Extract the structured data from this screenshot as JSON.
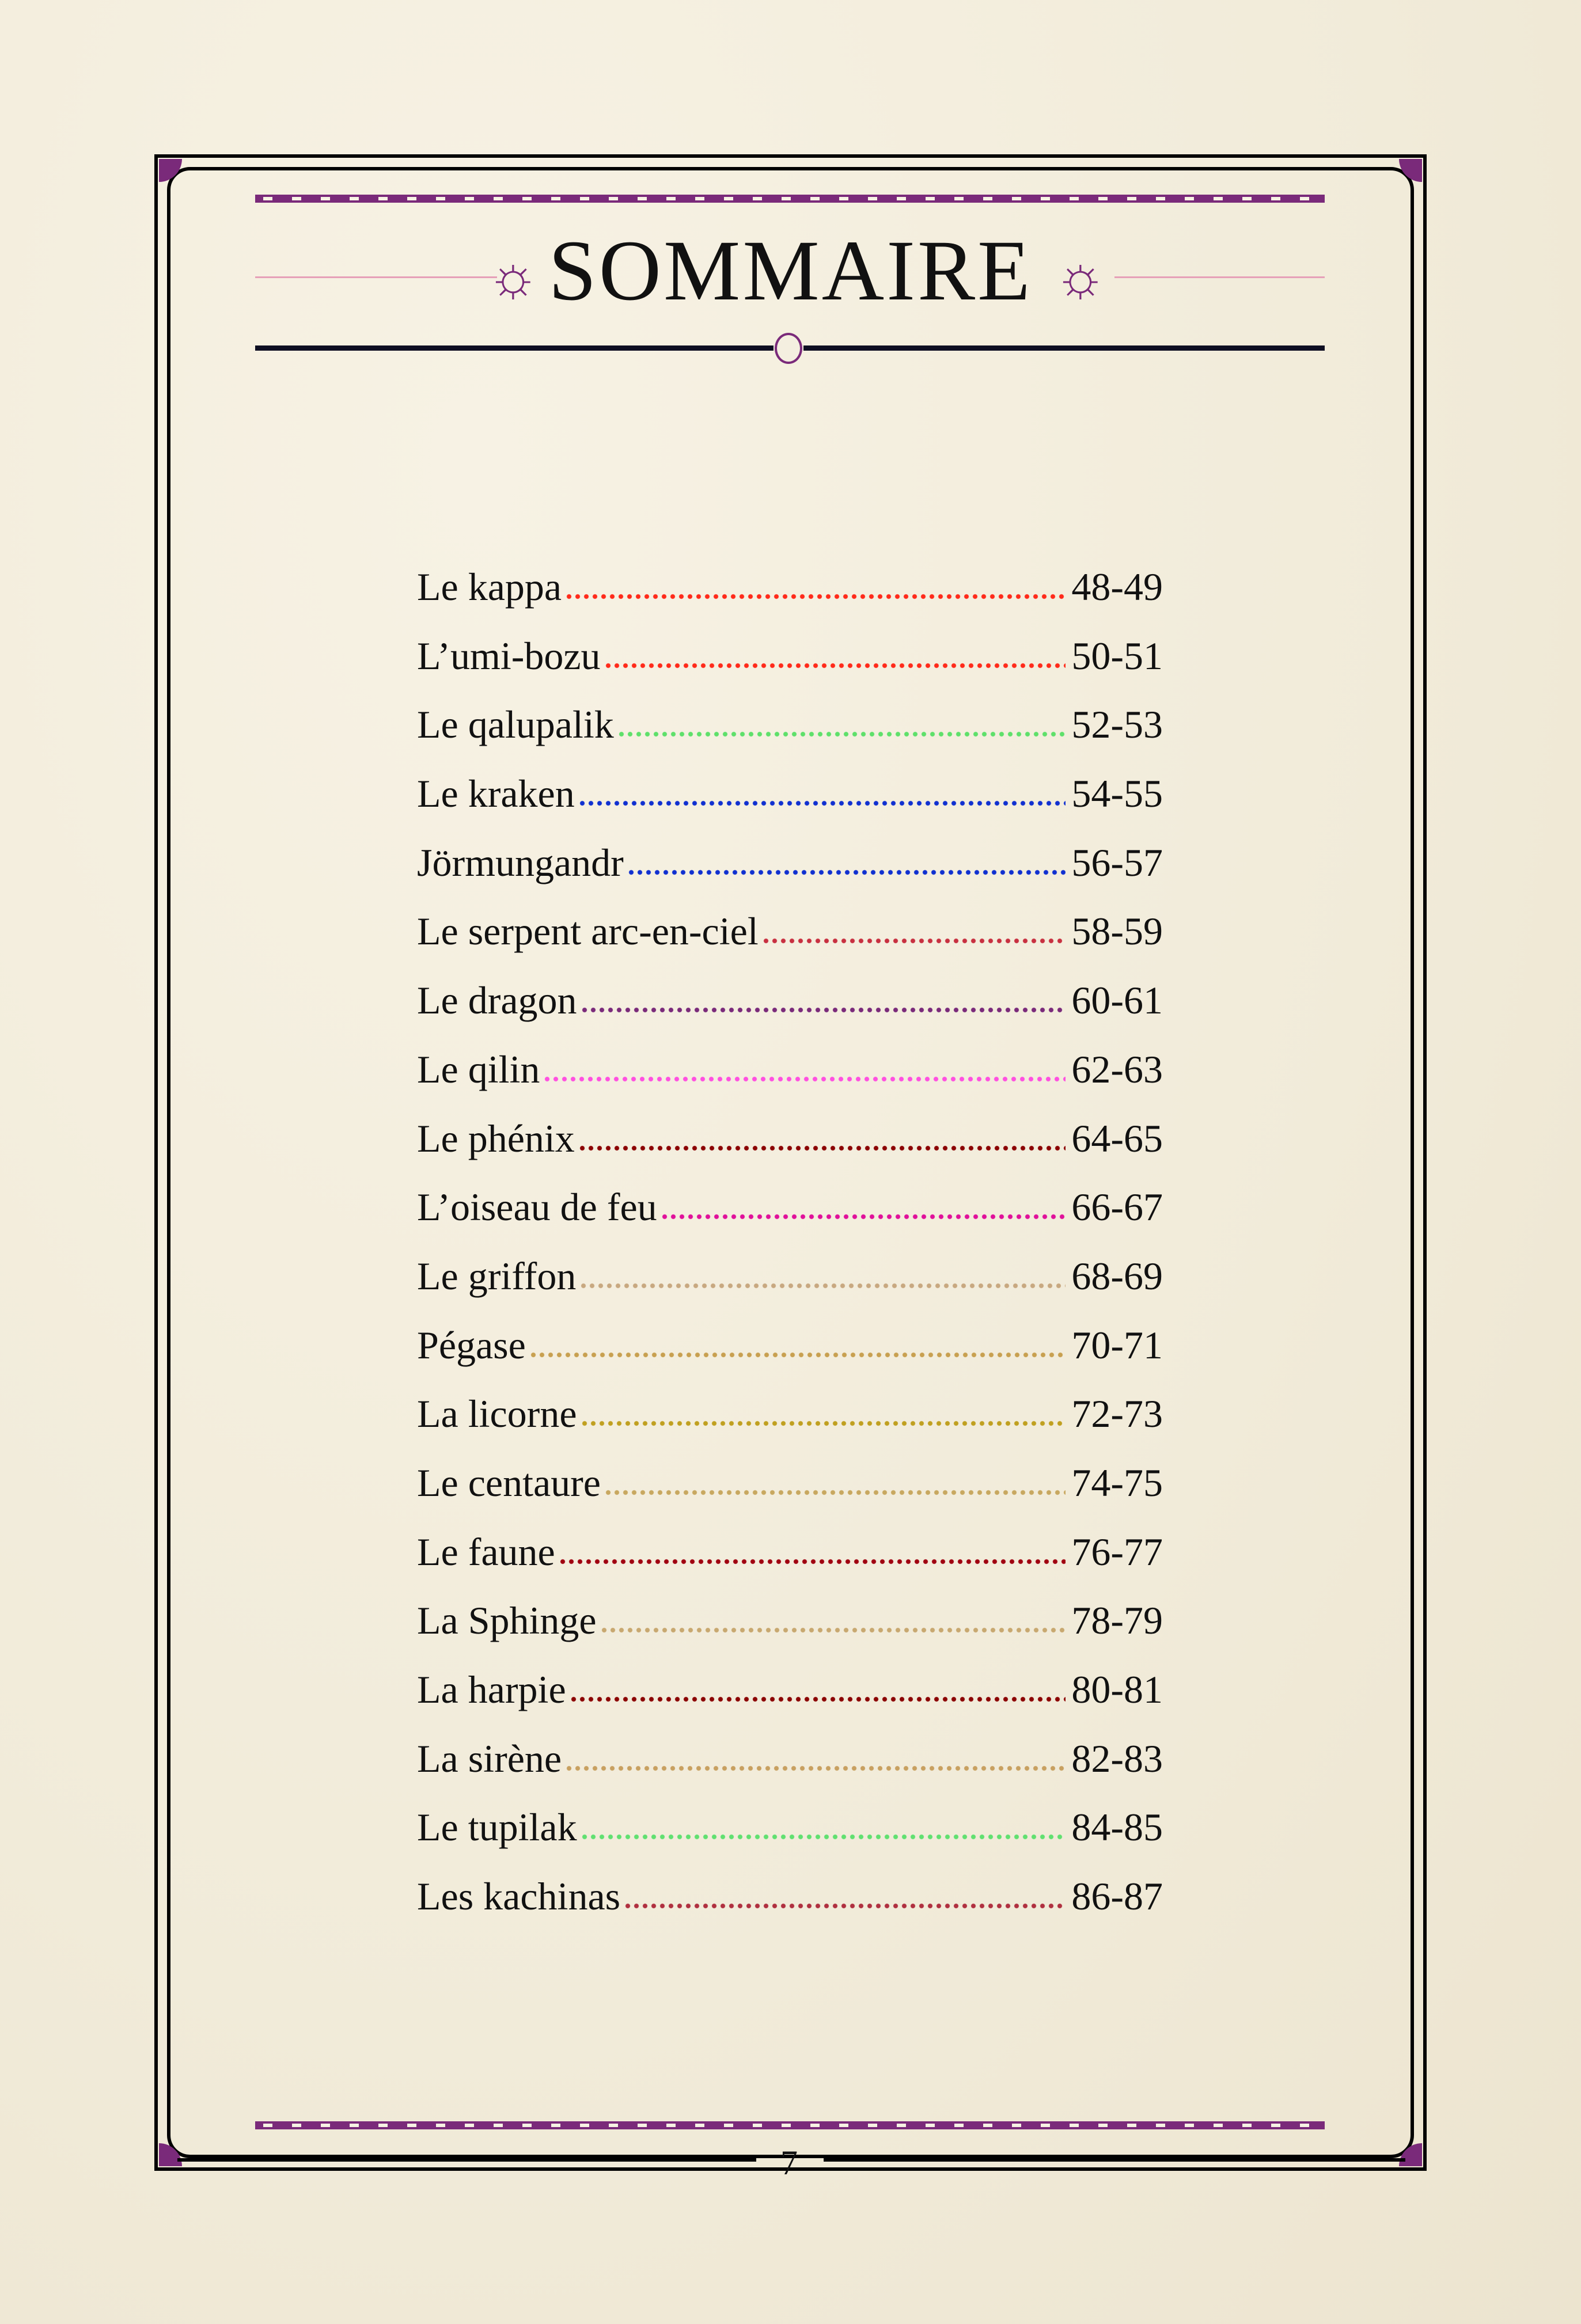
{
  "title": "SOMMAIRE",
  "page_number": "7",
  "colors": {
    "frame": "#000000",
    "accent": "#7a2a7a",
    "paper": "#f4efe0"
  },
  "entries": [
    {
      "name": "Le kappa",
      "pages": "48-49",
      "dot_color": "#ff2a1a"
    },
    {
      "name": "L’umi-bozu",
      "pages": "50-51",
      "dot_color": "#ff2a1a"
    },
    {
      "name": "Le qalupalik",
      "pages": "52-53",
      "dot_color": "#5ee06a"
    },
    {
      "name": "Le kraken",
      "pages": "54-55",
      "dot_color": "#1030d0"
    },
    {
      "name": "Jörmungandr",
      "pages": "56-57",
      "dot_color": "#1030d0"
    },
    {
      "name": "Le serpent arc-en-ciel",
      "pages": "58-59",
      "dot_color": "#c83040"
    },
    {
      "name": "Le dragon",
      "pages": "60-61",
      "dot_color": "#7a2a7a"
    },
    {
      "name": "Le qilin",
      "pages": "62-63",
      "dot_color": "#ff50e0"
    },
    {
      "name": "Le phénix",
      "pages": "64-65",
      "dot_color": "#8b0000"
    },
    {
      "name": "L’oiseau de feu",
      "pages": "66-67",
      "dot_color": "#e0109a"
    },
    {
      "name": "Le griffon",
      "pages": "68-69",
      "dot_color": "#c8a880"
    },
    {
      "name": "Pégase",
      "pages": "70-71",
      "dot_color": "#c8a050"
    },
    {
      "name": "La licorne",
      "pages": "72-73",
      "dot_color": "#c0a020"
    },
    {
      "name": "Le centaure",
      "pages": "74-75",
      "dot_color": "#c8a860"
    },
    {
      "name": "Le faune",
      "pages": "76-77",
      "dot_color": "#a00010"
    },
    {
      "name": "La Sphinge",
      "pages": "78-79",
      "dot_color": "#c8a870"
    },
    {
      "name": "La harpie",
      "pages": "80-81",
      "dot_color": "#8b0000"
    },
    {
      "name": "La sirène",
      "pages": "82-83",
      "dot_color": "#c8a060"
    },
    {
      "name": "Le tupilak",
      "pages": "84-85",
      "dot_color": "#60e070"
    },
    {
      "name": "Les kachinas",
      "pages": "86-87",
      "dot_color": "#b03040"
    }
  ]
}
